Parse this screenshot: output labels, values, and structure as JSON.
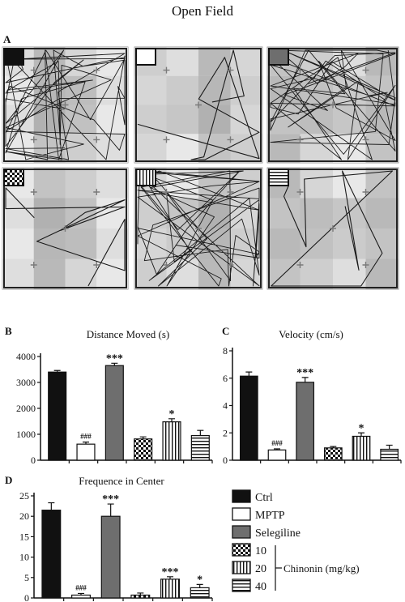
{
  "figure": {
    "title": "Open Field",
    "panel_labels": {
      "A": "A",
      "B": "B",
      "C": "C",
      "D": "D"
    },
    "colors": {
      "ctrl": "#111111",
      "mptp": "#ffffff",
      "selegiline": "#6e6e6e",
      "axis": "#111111",
      "tile_light": "#d9d9d9",
      "tile_mid": "#bdbdbd",
      "tile_dark": "#a8a8a8"
    },
    "icons": [
      "solid-black-swatch-icon",
      "white-swatch-icon",
      "dark-gray-swatch-icon",
      "checker-swatch-icon",
      "vertical-stripes-swatch-icon",
      "horizontal-stripes-swatch-icon"
    ]
  },
  "legend": {
    "items": [
      {
        "label": "Ctrl",
        "pattern": "solid-black"
      },
      {
        "label": "MPTP",
        "pattern": "white"
      },
      {
        "label": "Selegiline",
        "pattern": "dark-gray"
      },
      {
        "label": "10",
        "pattern": "checker"
      },
      {
        "label": "20",
        "pattern": "vertical-stripes"
      },
      {
        "label": "40",
        "pattern": "horizontal-stripes"
      }
    ],
    "group_label": "Chinonin (mg/kg)"
  },
  "chart_data": [
    {
      "panel": "B",
      "type": "bar",
      "title": "Distance  Moved (s)",
      "categories": [
        "Ctrl",
        "MPTP",
        "Selegiline",
        "10",
        "20",
        "40"
      ],
      "values": [
        3400,
        620,
        3650,
        820,
        1480,
        950
      ],
      "errors": [
        60,
        80,
        90,
        80,
        120,
        200
      ],
      "annotations": [
        "",
        "###",
        "***",
        "",
        "*",
        ""
      ],
      "yticks": [
        "0",
        "1000",
        "2000",
        "3000",
        "4000"
      ],
      "ylim": [
        0,
        4000
      ]
    },
    {
      "panel": "C",
      "type": "bar",
      "title": "Velocity  (cm/s)",
      "categories": [
        "Ctrl",
        "MPTP",
        "Selegiline",
        "10",
        "20",
        "40"
      ],
      "values": [
        6.15,
        0.75,
        5.7,
        0.9,
        1.75,
        0.8
      ],
      "errors": [
        0.3,
        0.08,
        0.35,
        0.1,
        0.25,
        0.3
      ],
      "annotations": [
        "",
        "###",
        "***",
        "",
        "*",
        ""
      ],
      "yticks": [
        "0",
        "2",
        "4",
        "6",
        "8"
      ],
      "ylim": [
        0,
        8
      ]
    },
    {
      "panel": "D",
      "type": "bar",
      "title": "Frequence in Center",
      "categories": [
        "Ctrl",
        "MPTP",
        "Selegiline",
        "10",
        "20",
        "40"
      ],
      "values": [
        21.5,
        0.7,
        20,
        0.7,
        4.6,
        2.5
      ],
      "errors": [
        1.8,
        0.4,
        3.0,
        0.5,
        0.6,
        0.8
      ],
      "annotations": [
        "",
        "###",
        "***",
        "",
        "***",
        "*"
      ],
      "yticks": [
        "0",
        "5",
        "10",
        "15",
        "20",
        "25"
      ],
      "ylim": [
        0,
        25
      ]
    }
  ]
}
